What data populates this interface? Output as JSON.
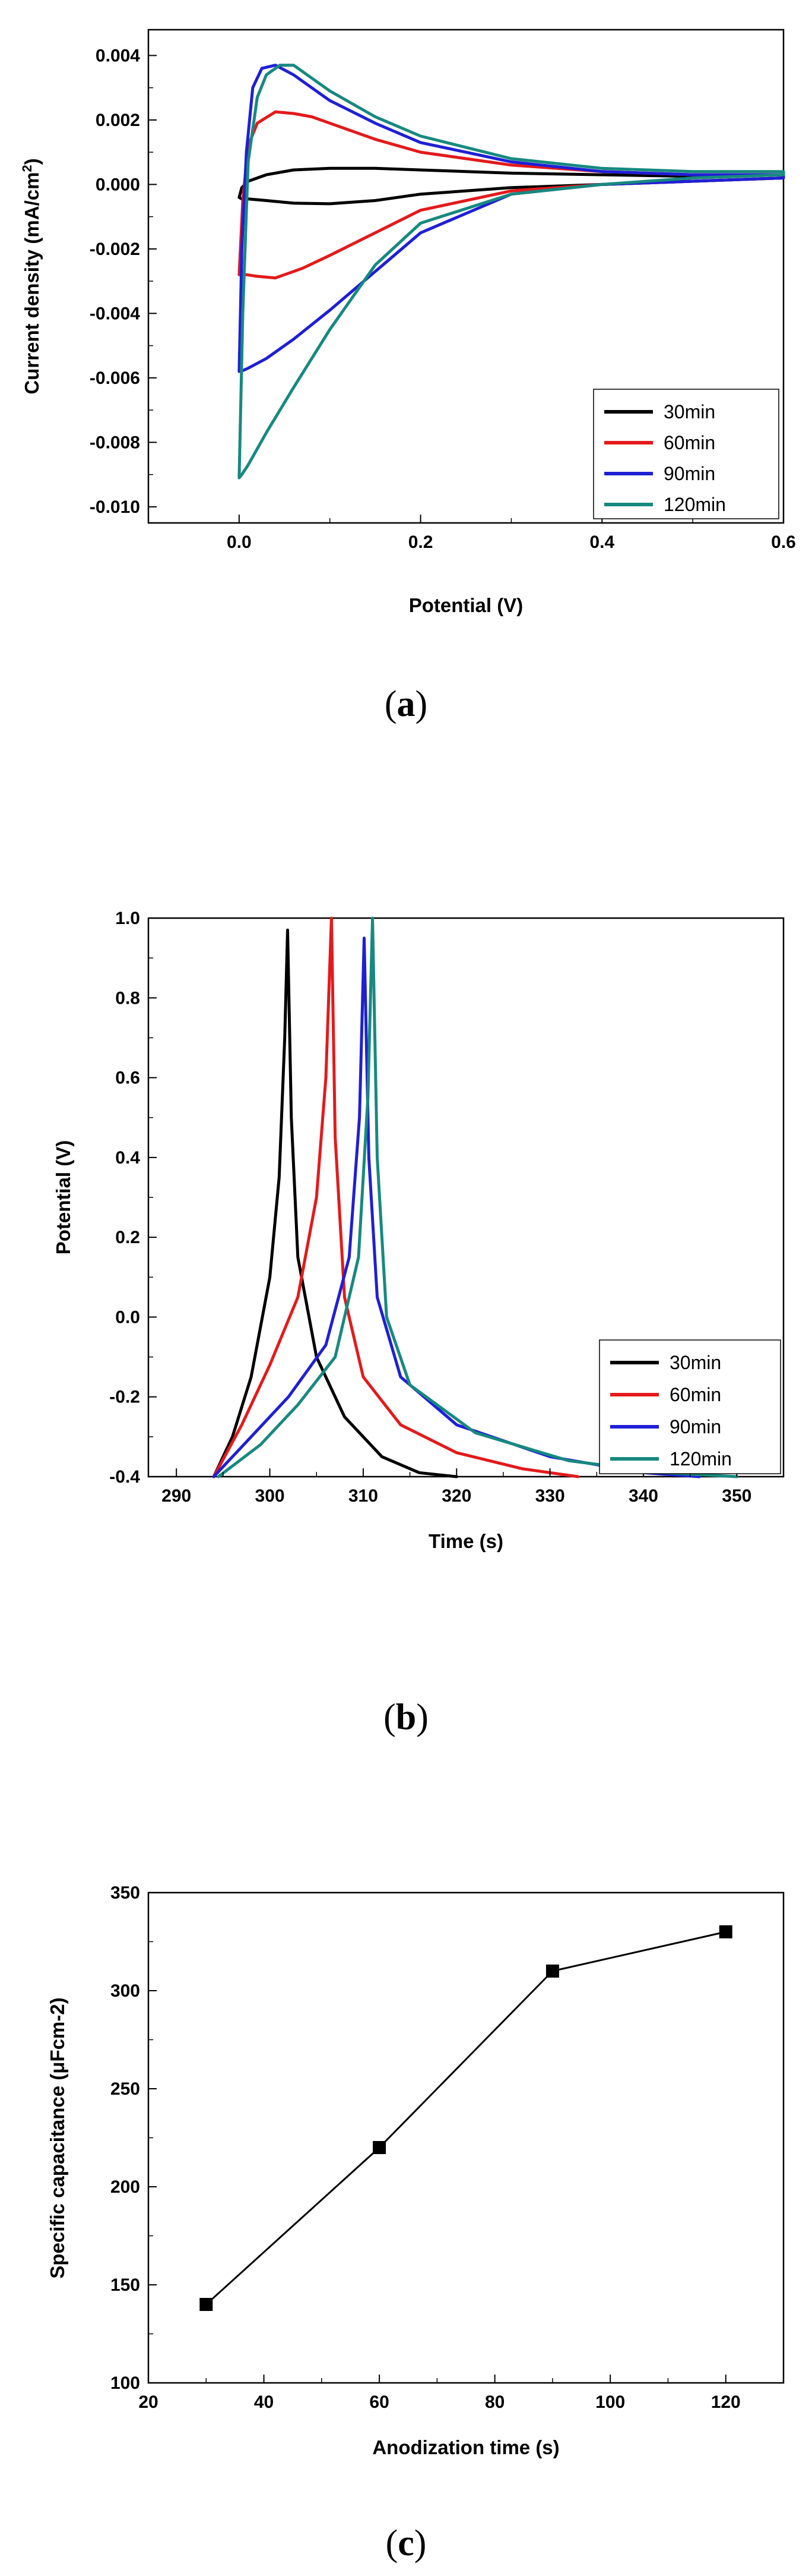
{
  "chart_data": [
    {
      "id": "a",
      "type": "line",
      "panel_label": "a",
      "xlabel": "Potential (V)",
      "ylabel": "Current density (mA/cm2)",
      "ylabel_parts": [
        "Current density (mA/cm",
        "2",
        ")"
      ],
      "xlim": [
        -0.1,
        0.6
      ],
      "ylim": [
        -0.0105,
        0.0048
      ],
      "xticks": [
        0.0,
        0.2,
        0.4,
        0.6
      ],
      "xtick_labels": [
        "0.0",
        "0.2",
        "0.4",
        "0.6"
      ],
      "yticks": [
        -0.01,
        -0.008,
        -0.006,
        -0.004,
        -0.002,
        0.0,
        0.002,
        0.004
      ],
      "ytick_labels": [
        "-0.010",
        "-0.008",
        "-0.006",
        "-0.004",
        "-0.002",
        "0.000",
        "0.002",
        "0.004"
      ],
      "legend_position": "bottom-right",
      "series": [
        {
          "name": "30min",
          "color": "#000000",
          "x": [
            0.0,
            0.003,
            0.01,
            0.03,
            0.06,
            0.1,
            0.15,
            0.2,
            0.3,
            0.4,
            0.5,
            0.6,
            0.6,
            0.5,
            0.4,
            0.3,
            0.2,
            0.15,
            0.1,
            0.06,
            0.03,
            0.01,
            0.003,
            0.0
          ],
          "y": [
            -0.0004,
            -0.0001,
            0.0001,
            0.0003,
            0.00045,
            0.0005,
            0.0005,
            0.00045,
            0.00035,
            0.0003,
            0.00025,
            0.0003,
            0.0002,
            0.0001,
            0.0,
            -0.0001,
            -0.0003,
            -0.0005,
            -0.0006,
            -0.00058,
            -0.0005,
            -0.00045,
            -0.00045,
            -0.0004
          ]
        },
        {
          "name": "60min",
          "color": "#e31a1c",
          "x": [
            0.0,
            0.004,
            0.01,
            0.02,
            0.04,
            0.06,
            0.08,
            0.1,
            0.15,
            0.2,
            0.3,
            0.4,
            0.5,
            0.6,
            0.6,
            0.5,
            0.4,
            0.3,
            0.2,
            0.15,
            0.1,
            0.07,
            0.04,
            0.02,
            0.008,
            0.003,
            0.0
          ],
          "y": [
            -0.0028,
            -0.0005,
            0.0012,
            0.0019,
            0.00225,
            0.0022,
            0.0021,
            0.0019,
            0.0014,
            0.001,
            0.0006,
            0.0004,
            0.0003,
            0.0003,
            0.0002,
            0.0001,
            0.0,
            -0.0002,
            -0.0008,
            -0.0015,
            -0.0022,
            -0.0026,
            -0.0029,
            -0.00285,
            -0.0028,
            -0.0028,
            -0.0028
          ]
        },
        {
          "name": "90min",
          "color": "#1f1fd6",
          "x": [
            0.0,
            0.003,
            0.008,
            0.015,
            0.025,
            0.04,
            0.06,
            0.08,
            0.1,
            0.15,
            0.2,
            0.3,
            0.4,
            0.5,
            0.6,
            0.6,
            0.5,
            0.4,
            0.3,
            0.2,
            0.15,
            0.1,
            0.06,
            0.03,
            0.01,
            0.002,
            0.0
          ],
          "y": [
            -0.0058,
            -0.002,
            0.001,
            0.003,
            0.0036,
            0.0037,
            0.0034,
            0.003,
            0.0026,
            0.0019,
            0.0013,
            0.0007,
            0.0004,
            0.0003,
            0.0003,
            0.0002,
            0.0001,
            0.0,
            -0.0003,
            -0.0015,
            -0.0027,
            -0.0039,
            -0.0048,
            -0.0054,
            -0.0057,
            -0.0058,
            -0.0058
          ]
        },
        {
          "name": "120min",
          "color": "#17897f",
          "x": [
            0.0,
            0.004,
            0.01,
            0.02,
            0.03,
            0.045,
            0.06,
            0.08,
            0.1,
            0.15,
            0.2,
            0.3,
            0.4,
            0.5,
            0.6,
            0.6,
            0.5,
            0.4,
            0.3,
            0.2,
            0.15,
            0.1,
            0.06,
            0.03,
            0.01,
            0.003,
            0.0
          ],
          "y": [
            -0.0091,
            -0.004,
            0.0007,
            0.0027,
            0.0034,
            0.0037,
            0.0037,
            0.0033,
            0.0029,
            0.0021,
            0.0015,
            0.0008,
            0.0005,
            0.0004,
            0.0004,
            0.0003,
            0.0002,
            0.0,
            -0.0003,
            -0.0012,
            -0.0025,
            -0.0045,
            -0.0063,
            -0.0077,
            -0.0087,
            -0.009,
            -0.0091
          ]
        }
      ]
    },
    {
      "id": "b",
      "type": "line",
      "panel_label": "b",
      "xlabel": "Time (s)",
      "ylabel": "Potential (V)",
      "xlim": [
        287,
        355
      ],
      "ylim": [
        -0.4,
        1.0
      ],
      "xticks": [
        290,
        300,
        310,
        320,
        330,
        340,
        350
      ],
      "xtick_labels": [
        "290",
        "300",
        "310",
        "320",
        "330",
        "340",
        "350"
      ],
      "yticks": [
        -0.4,
        -0.2,
        0.0,
        0.2,
        0.4,
        0.6,
        0.8,
        1.0
      ],
      "ytick_labels": [
        "-0.4",
        "-0.2",
        "0.0",
        "0.2",
        "0.4",
        "0.6",
        "0.8",
        "1.0"
      ],
      "legend_position": "bottom-right",
      "series": [
        {
          "name": "30min",
          "color": "#000000",
          "x": [
            294.0,
            296.0,
            298.0,
            300.0,
            301.0,
            301.6,
            301.9,
            302.3,
            303.0,
            305.0,
            308.0,
            312.0,
            316.0,
            320.0
          ],
          "y": [
            -0.4,
            -0.3,
            -0.15,
            0.1,
            0.35,
            0.7,
            0.97,
            0.5,
            0.15,
            -0.1,
            -0.25,
            -0.35,
            -0.39,
            -0.4
          ]
        },
        {
          "name": "60min",
          "color": "#e31a1c",
          "x": [
            294.0,
            297.0,
            300.0,
            303.0,
            305.0,
            306.0,
            306.6,
            307.0,
            308.0,
            310.0,
            314.0,
            320.0,
            327.0,
            333.0
          ],
          "y": [
            -0.4,
            -0.27,
            -0.12,
            0.05,
            0.3,
            0.6,
            1.0,
            0.45,
            0.05,
            -0.15,
            -0.27,
            -0.34,
            -0.38,
            -0.4
          ]
        },
        {
          "name": "90min",
          "color": "#1f1fd6",
          "x": [
            294.0,
            298.0,
            302.0,
            306.0,
            308.5,
            309.6,
            310.1,
            310.6,
            311.5,
            314.0,
            320.0,
            330.0,
            340.0,
            346.0
          ],
          "y": [
            -0.4,
            -0.3,
            -0.2,
            -0.07,
            0.15,
            0.5,
            0.95,
            0.4,
            0.05,
            -0.15,
            -0.27,
            -0.35,
            -0.39,
            -0.4
          ]
        },
        {
          "name": "120min",
          "color": "#17897f",
          "x": [
            294.5,
            299.0,
            303.0,
            307.0,
            309.5,
            310.5,
            311.0,
            311.5,
            312.5,
            315.0,
            322.0,
            332.0,
            342.0,
            350.0
          ],
          "y": [
            -0.4,
            -0.32,
            -0.22,
            -0.1,
            0.15,
            0.55,
            1.0,
            0.4,
            0.0,
            -0.17,
            -0.29,
            -0.36,
            -0.39,
            -0.4
          ]
        }
      ]
    },
    {
      "id": "c",
      "type": "line",
      "panel_label": "c",
      "xlabel": "Anodization time (s)",
      "ylabel": "Specific capacitance (μFcm-2)",
      "xlim": [
        20,
        130
      ],
      "ylim": [
        100,
        350
      ],
      "xticks": [
        20,
        40,
        60,
        80,
        100,
        120
      ],
      "xtick_labels": [
        "20",
        "40",
        "60",
        "80",
        "100",
        "120"
      ],
      "yticks": [
        100,
        150,
        200,
        250,
        300,
        350
      ],
      "ytick_labels": [
        "100",
        "150",
        "200",
        "250",
        "300",
        "350"
      ],
      "series": [
        {
          "name": "Specific capacitance",
          "color": "#000000",
          "marker": "square",
          "x": [
            30,
            60,
            90,
            120
          ],
          "y": [
            140,
            220,
            310,
            330
          ]
        }
      ]
    }
  ]
}
